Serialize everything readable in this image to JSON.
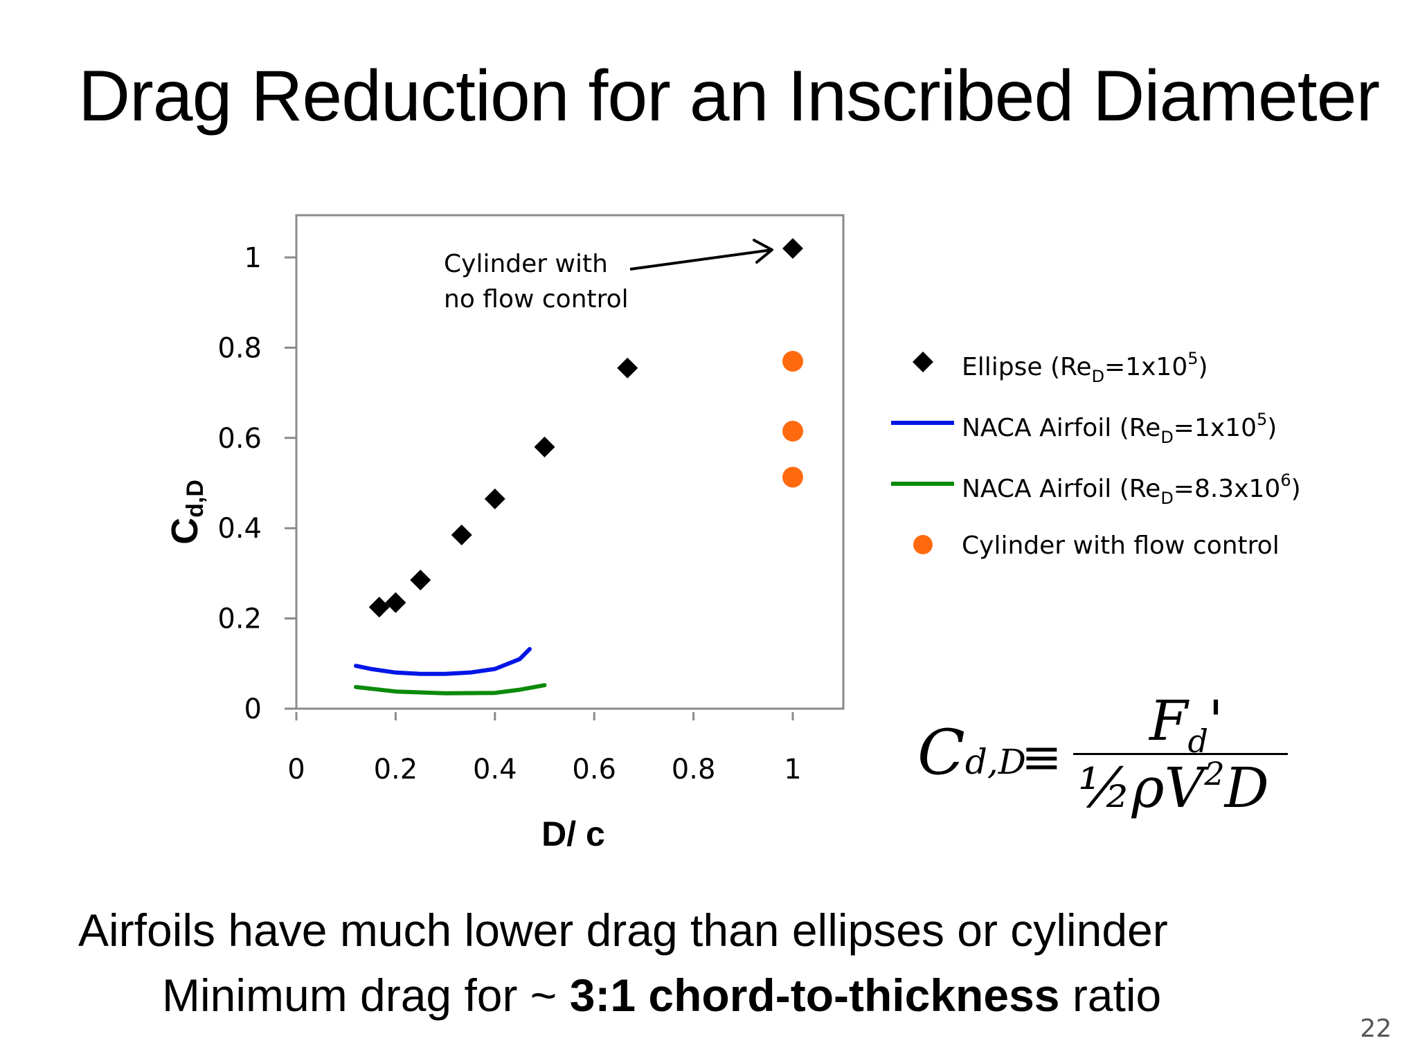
{
  "slide": {
    "title": "Drag Reduction for an Inscribed Diameter",
    "bullets": [
      {
        "text": "Airfoils have much lower drag than ellipses or cylinder"
      },
      {
        "prefix": "Minimum drag for ~ ",
        "bold": "3:1 chord-to-thickness",
        "suffix": " ratio"
      }
    ],
    "page_number": "22"
  },
  "formula": {
    "lhs": "C",
    "lhs_sub": "d,D",
    "equiv": "≡",
    "numerator": "F",
    "numerator_sub": "d",
    "numerator_prime": "'",
    "den_half": "½",
    "den_rho_v": "ρV",
    "den_sup": "2",
    "den_d": "D"
  },
  "chart_data": {
    "type": "scatter",
    "xlabel": "D/ c",
    "ylabel": "C",
    "ylabel_sub": "d,D",
    "xlim": [
      0,
      1.1
    ],
    "ylim": [
      0,
      1.1
    ],
    "x_ticks": [
      "0",
      "0.2",
      "0.4",
      "0.6",
      "0.8",
      "1"
    ],
    "y_ticks": [
      "0",
      "0.2",
      "0.4",
      "0.6",
      "0.8",
      "1"
    ],
    "annotation": {
      "lines": [
        "Cylinder with",
        "no flow control"
      ],
      "points_to": {
        "x": 1.0,
        "y": 1.02
      }
    },
    "series": [
      {
        "name": "Ellipse",
        "name_sub": "D",
        "name_pre": " (Re",
        "name_post": "=1x10",
        "name_sup": "5",
        "name_end": ")",
        "type": "scatter",
        "marker": "diamond",
        "color": "#000000",
        "points": [
          {
            "x": 0.167,
            "y": 0.225
          },
          {
            "x": 0.2,
            "y": 0.235
          },
          {
            "x": 0.25,
            "y": 0.285
          },
          {
            "x": 0.333,
            "y": 0.385
          },
          {
            "x": 0.4,
            "y": 0.465
          },
          {
            "x": 0.5,
            "y": 0.58
          },
          {
            "x": 0.667,
            "y": 0.755
          },
          {
            "x": 1.0,
            "y": 1.02
          }
        ]
      },
      {
        "name": "NACA Airfoil",
        "name_pre": " (Re",
        "name_sub": "D",
        "name_post": "=1x10",
        "name_sup": "5",
        "name_end": ")",
        "type": "line",
        "color": "#0015e6",
        "points": [
          {
            "x": 0.12,
            "y": 0.095
          },
          {
            "x": 0.15,
            "y": 0.088
          },
          {
            "x": 0.2,
            "y": 0.08
          },
          {
            "x": 0.25,
            "y": 0.077
          },
          {
            "x": 0.3,
            "y": 0.077
          },
          {
            "x": 0.35,
            "y": 0.08
          },
          {
            "x": 0.4,
            "y": 0.088
          },
          {
            "x": 0.45,
            "y": 0.11
          },
          {
            "x": 0.47,
            "y": 0.132
          }
        ]
      },
      {
        "name": "NACA Airfoil",
        "name_pre": " (Re",
        "name_sub": "D",
        "name_post": "=8.3x10",
        "name_sup": "6",
        "name_end": ")",
        "type": "line",
        "color": "#0a8a0a",
        "points": [
          {
            "x": 0.12,
            "y": 0.048
          },
          {
            "x": 0.2,
            "y": 0.038
          },
          {
            "x": 0.3,
            "y": 0.034
          },
          {
            "x": 0.4,
            "y": 0.035
          },
          {
            "x": 0.45,
            "y": 0.042
          },
          {
            "x": 0.5,
            "y": 0.052
          }
        ]
      },
      {
        "name": "Cylinder with flow control",
        "type": "scatter",
        "marker": "circle",
        "color": "#ff6a0f",
        "points": [
          {
            "x": 1.0,
            "y": 0.77
          },
          {
            "x": 1.0,
            "y": 0.615
          },
          {
            "x": 1.0,
            "y": 0.513
          }
        ]
      }
    ]
  }
}
